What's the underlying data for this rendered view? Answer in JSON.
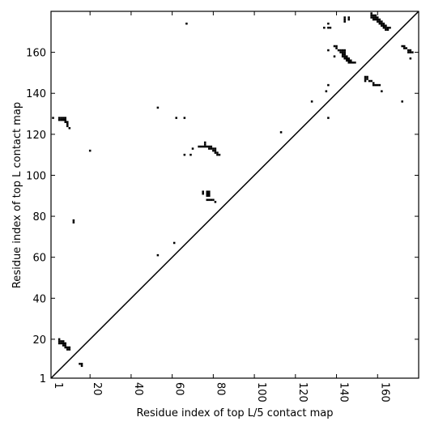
{
  "chart_data": {
    "type": "scatter",
    "xlabel": "Residue index of top L/5 contact map",
    "ylabel": "Residue index of top L contact map",
    "xlim": [
      1,
      180
    ],
    "ylim": [
      1,
      180
    ],
    "xticks": [
      1,
      20,
      40,
      60,
      80,
      100,
      120,
      140,
      160
    ],
    "yticks": [
      1,
      20,
      40,
      60,
      80,
      100,
      120,
      140,
      160
    ],
    "diagonal": true,
    "series": [
      {
        "color": "#000000",
        "x": [
          2,
          5,
          6,
          7,
          8,
          5,
          6,
          7,
          8,
          8,
          9,
          9,
          9,
          10,
          20,
          12,
          12,
          53,
          62,
          66,
          67,
          66,
          69,
          70,
          76,
          76,
          73,
          74,
          75,
          76,
          77,
          78,
          79,
          80,
          78,
          79,
          81,
          80,
          81,
          81,
          82,
          82,
          83,
          75,
          75,
          77,
          78,
          77,
          78,
          77,
          78,
          77,
          78,
          79,
          80,
          81,
          53,
          61,
          113,
          128,
          134,
          136,
          136,
          137,
          135,
          136,
          136,
          136,
          139,
          140,
          140,
          141,
          142,
          143,
          144,
          142,
          143,
          144,
          143,
          144,
          143,
          144,
          145,
          144,
          145,
          146,
          145,
          146,
          147,
          146,
          147,
          148,
          149,
          139,
          144,
          144,
          144,
          146,
          146,
          157,
          157,
          158,
          159,
          158,
          159,
          160,
          159,
          160,
          161,
          160,
          161,
          162,
          161,
          162,
          163,
          162,
          163,
          164,
          163,
          164,
          165,
          164,
          165,
          166,
          157,
          158,
          154,
          155,
          154,
          155,
          154,
          156,
          157,
          158,
          158,
          159,
          160,
          161,
          162,
          172,
          173,
          173,
          174,
          175,
          176,
          175,
          176,
          177,
          176,
          172,
          5,
          5,
          6,
          7,
          5,
          6,
          7,
          8,
          7,
          8,
          8,
          9,
          9,
          10,
          10,
          15,
          16,
          16
        ],
        "y": [
          128,
          128,
          128,
          128,
          128,
          127,
          127,
          127,
          127,
          126,
          126,
          125,
          124,
          123,
          112,
          77,
          78,
          133,
          128,
          128,
          174,
          110,
          110,
          113,
          116,
          115,
          114,
          114,
          114,
          114,
          114,
          113,
          113,
          113,
          114,
          114,
          113,
          112,
          112,
          111,
          111,
          110,
          110,
          92,
          91,
          92,
          92,
          91,
          91,
          90,
          90,
          88,
          88,
          88,
          88,
          87,
          61,
          67,
          121,
          136,
          172,
          174,
          172,
          172,
          141,
          144,
          128,
          161,
          163,
          163,
          162,
          161,
          161,
          161,
          161,
          160,
          160,
          160,
          159,
          159,
          158,
          158,
          158,
          157,
          157,
          157,
          156,
          156,
          156,
          155,
          155,
          155,
          155,
          158,
          175,
          176,
          177,
          177,
          176,
          179,
          178,
          178,
          178,
          177,
          177,
          177,
          176,
          176,
          176,
          175,
          175,
          175,
          174,
          174,
          174,
          173,
          173,
          173,
          172,
          172,
          172,
          171,
          171,
          172,
          177,
          176,
          148,
          148,
          147,
          147,
          146,
          146,
          146,
          145,
          144,
          144,
          144,
          144,
          141,
          163,
          163,
          162,
          162,
          161,
          161,
          160,
          160,
          160,
          157,
          136,
          20,
          19,
          19,
          19,
          18,
          18,
          18,
          18,
          17,
          17,
          16,
          16,
          15,
          16,
          15,
          8,
          8,
          7
        ]
      }
    ]
  }
}
